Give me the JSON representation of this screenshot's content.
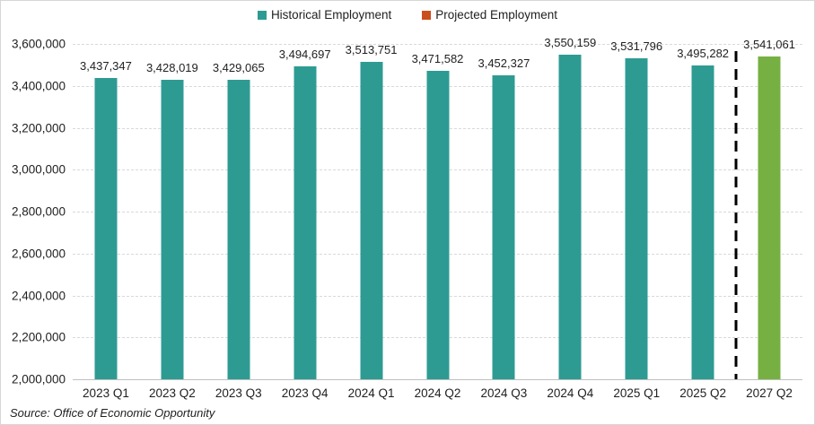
{
  "chart_data": {
    "type": "bar",
    "title": "",
    "xlabel": "",
    "ylabel": "",
    "categories": [
      "2023 Q1",
      "2023 Q2",
      "2023 Q3",
      "2023 Q4",
      "2024 Q1",
      "2024 Q2",
      "2024 Q3",
      "2024 Q4",
      "2025 Q1",
      "2025 Q2",
      "2027 Q2"
    ],
    "series": [
      {
        "name": "Historical Employment",
        "legend_color": "#2E9B93",
        "bar_color": "#2E9B93",
        "values": [
          3437347,
          3428019,
          3429065,
          3494697,
          3513751,
          3471582,
          3452327,
          3550159,
          3531796,
          3495282,
          null
        ]
      },
      {
        "name": "Projected Employment",
        "legend_color": "#CB4E1D",
        "bar_color": "#76B043",
        "values": [
          null,
          null,
          null,
          null,
          null,
          null,
          null,
          null,
          null,
          null,
          3541061
        ]
      }
    ],
    "data_labels": [
      "3,437,347",
      "3,428,019",
      "3,429,065",
      "3,494,697",
      "3,513,751",
      "3,471,582",
      "3,452,327",
      "3,550,159",
      "3,531,796",
      "3,495,282",
      "3,541,061"
    ],
    "ylim": [
      2000000,
      3600000
    ],
    "yticks": [
      "3,600,000",
      "3,400,000",
      "3,200,000",
      "3,000,000",
      "2,800,000",
      "2,600,000",
      "2,400,000",
      "2,200,000",
      "2,000,000"
    ],
    "grid": true,
    "legend_position": "top",
    "divider": {
      "after_category": "2025 Q2",
      "style": "dashed-black"
    }
  },
  "footer": {
    "source": "Source: Office of Economic Opportunity"
  }
}
